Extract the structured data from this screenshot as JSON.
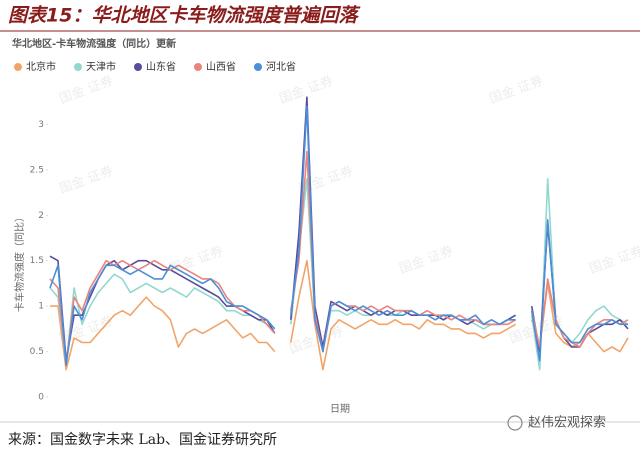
{
  "header": {
    "title": "图表15：华北地区卡车物流强度普遍回落"
  },
  "chart_data": {
    "type": "line",
    "title": "华北地区-卡车物流强度（同比）更新",
    "ylabel": "卡车物流强度（同比）",
    "xlabel": "日期",
    "watermark": "国金 证券",
    "legend": "top",
    "ylim": [
      0,
      3.5
    ],
    "yticks": [
      0,
      0.5,
      1,
      1.5,
      2,
      2.5,
      3
    ],
    "categories": [
      null,
      null,
      null,
      null,
      null,
      null,
      null,
      null,
      null,
      null,
      null,
      null,
      null,
      null,
      null,
      null,
      null,
      null,
      null,
      null,
      null,
      null,
      null,
      null,
      null,
      null,
      null,
      null,
      null,
      null,
      null,
      null,
      null,
      null,
      null,
      null,
      null,
      null,
      null,
      null,
      null,
      null,
      null,
      null,
      null,
      null,
      null,
      null,
      null,
      null,
      null,
      null,
      null,
      null,
      null,
      null,
      null,
      null,
      null,
      null,
      null,
      null,
      null,
      null,
      null,
      null,
      null,
      null,
      null,
      null,
      null,
      null,
      null
    ],
    "series": [
      {
        "name": "北京市",
        "color": "#f2a468",
        "values": [
          1.0,
          1.0,
          0.3,
          0.65,
          0.6,
          0.6,
          0.7,
          0.8,
          0.9,
          0.95,
          0.9,
          1.0,
          1.1,
          1.0,
          0.95,
          0.85,
          0.55,
          0.7,
          0.75,
          0.7,
          0.75,
          0.8,
          0.85,
          0.75,
          0.65,
          0.7,
          0.6,
          0.6,
          0.5,
          null,
          0.6,
          1.1,
          1.5,
          0.8,
          0.3,
          0.75,
          0.85,
          0.8,
          0.75,
          0.8,
          0.85,
          0.8,
          0.8,
          0.85,
          0.8,
          0.8,
          0.75,
          0.85,
          0.8,
          0.8,
          0.75,
          0.75,
          0.7,
          0.7,
          0.65,
          0.7,
          0.7,
          0.75,
          0.8,
          null,
          0.85,
          0.55,
          1.25,
          0.7,
          0.6,
          0.55,
          0.6,
          0.7,
          0.6,
          0.5,
          0.55,
          0.5,
          0.65
        ]
      },
      {
        "name": "天津市",
        "color": "#93d8d0",
        "values": [
          1.2,
          1.1,
          0.35,
          1.2,
          0.8,
          1.0,
          1.15,
          1.25,
          1.35,
          1.3,
          1.15,
          1.2,
          1.25,
          1.2,
          1.15,
          1.2,
          1.15,
          1.1,
          1.2,
          1.15,
          1.1,
          1.05,
          0.95,
          0.95,
          0.9,
          0.9,
          0.85,
          0.8,
          0.7,
          null,
          0.8,
          1.6,
          2.4,
          0.85,
          0.55,
          0.95,
          0.95,
          0.9,
          0.95,
          0.9,
          0.9,
          0.95,
          0.9,
          0.9,
          0.95,
          0.95,
          0.9,
          0.9,
          0.9,
          0.85,
          0.9,
          0.85,
          0.85,
          0.8,
          0.75,
          0.8,
          0.8,
          0.85,
          0.9,
          null,
          0.9,
          0.3,
          2.4,
          0.8,
          0.7,
          0.6,
          0.7,
          0.85,
          0.95,
          1.0,
          0.9,
          0.85,
          0.8
        ]
      },
      {
        "name": "山东省",
        "color": "#5a4c9c",
        "values": [
          1.55,
          1.5,
          0.4,
          0.9,
          0.9,
          1.1,
          1.3,
          1.45,
          1.5,
          1.4,
          1.45,
          1.5,
          1.5,
          1.45,
          1.4,
          1.4,
          1.35,
          1.3,
          1.25,
          1.2,
          1.15,
          1.1,
          1.0,
          1.0,
          0.95,
          0.9,
          0.85,
          0.85,
          0.7,
          null,
          0.85,
          1.8,
          3.3,
          1.0,
          0.55,
          1.05,
          1.0,
          0.95,
          1.0,
          0.95,
          0.9,
          0.95,
          0.9,
          0.95,
          0.95,
          0.9,
          0.9,
          0.9,
          0.9,
          0.85,
          0.9,
          0.85,
          0.8,
          0.85,
          0.8,
          0.8,
          0.8,
          0.85,
          0.9,
          null,
          1.0,
          0.5,
          1.9,
          0.85,
          0.65,
          0.55,
          0.55,
          0.7,
          0.75,
          0.8,
          0.8,
          0.85,
          0.75
        ]
      },
      {
        "name": "山西省",
        "color": "#ea847c",
        "values": [
          1.3,
          1.2,
          0.35,
          1.1,
          0.95,
          1.2,
          1.35,
          1.5,
          1.45,
          1.5,
          1.45,
          1.4,
          1.45,
          1.5,
          1.45,
          1.4,
          1.45,
          1.4,
          1.35,
          1.3,
          1.3,
          1.25,
          1.1,
          1.0,
          0.95,
          0.95,
          0.9,
          0.8,
          0.7,
          null,
          0.95,
          1.5,
          2.7,
          0.9,
          0.5,
          1.0,
          1.05,
          1.0,
          1.0,
          0.95,
          1.0,
          0.95,
          1.0,
          0.95,
          0.95,
          0.95,
          0.9,
          0.95,
          0.9,
          0.9,
          0.85,
          0.9,
          0.85,
          0.85,
          0.8,
          0.8,
          0.8,
          0.8,
          0.85,
          null,
          0.95,
          0.55,
          1.3,
          0.85,
          0.65,
          0.6,
          0.55,
          0.7,
          0.8,
          0.85,
          0.85,
          0.8,
          0.85
        ]
      },
      {
        "name": "河北省",
        "color": "#4a8fd8",
        "values": [
          1.2,
          1.45,
          0.35,
          1.0,
          0.85,
          1.15,
          1.3,
          1.45,
          1.45,
          1.4,
          1.35,
          1.4,
          1.35,
          1.3,
          1.3,
          1.45,
          1.4,
          1.35,
          1.3,
          1.25,
          1.3,
          1.2,
          1.05,
          1.0,
          1.0,
          0.95,
          0.9,
          0.85,
          0.75,
          null,
          0.9,
          1.6,
          3.2,
          0.85,
          0.5,
          1.0,
          1.05,
          1.0,
          0.95,
          1.0,
          0.95,
          0.9,
          0.95,
          0.9,
          0.9,
          0.95,
          0.9,
          0.9,
          0.85,
          0.9,
          0.9,
          0.85,
          0.85,
          0.9,
          0.8,
          0.85,
          0.8,
          0.85,
          0.85,
          null,
          0.95,
          0.4,
          1.95,
          0.8,
          0.7,
          0.6,
          0.6,
          0.75,
          0.8,
          0.8,
          0.85,
          0.8,
          0.8
        ]
      }
    ]
  },
  "footer": {
    "source": "来源：国金数字未来 Lab、国金证券研究所",
    "brand": "赵伟宏观探索"
  }
}
